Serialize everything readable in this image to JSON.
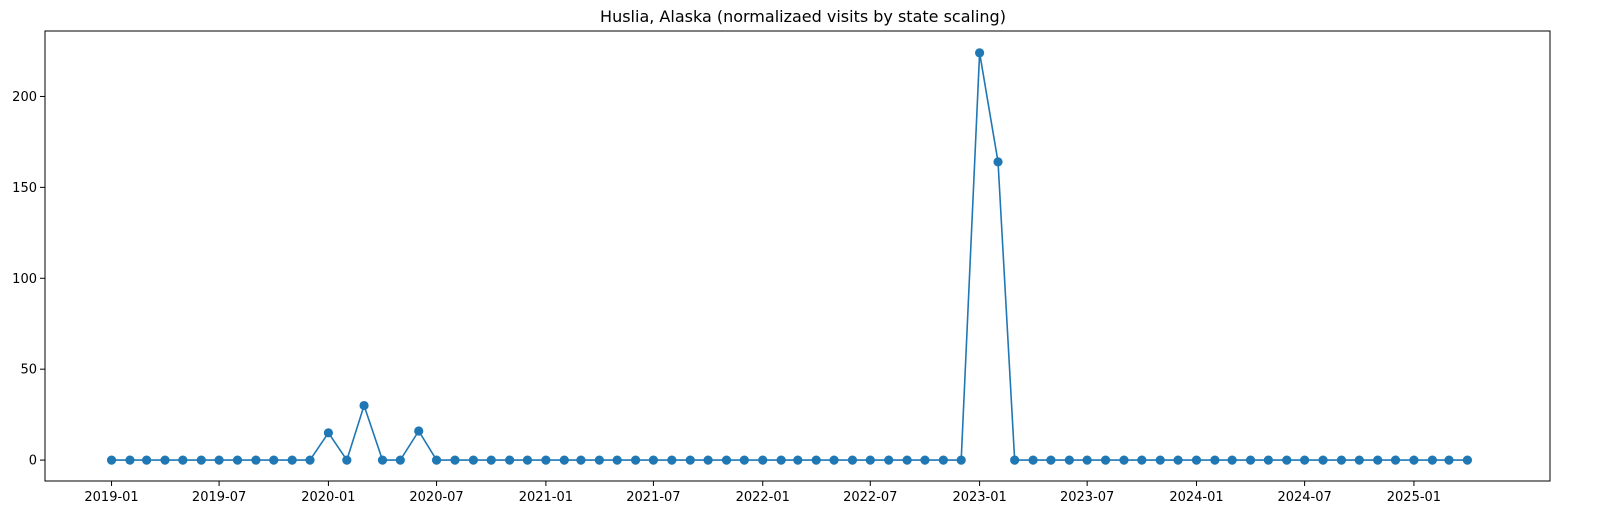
{
  "chart_data": {
    "type": "line",
    "title": "Huslia, Alaska (normalizaed visits by state scaling)",
    "xlabel": "",
    "ylabel": "",
    "ylim": [
      -11.5,
      236
    ],
    "xlim": [
      "2018-09-11",
      "2025-08-18"
    ],
    "grid": false,
    "color": "#1f77b4",
    "x_ticks": [
      "2019-01",
      "2019-07",
      "2020-01",
      "2020-07",
      "2021-01",
      "2021-07",
      "2022-01",
      "2022-07",
      "2023-01",
      "2023-07",
      "2024-01",
      "2024-07",
      "2025-01"
    ],
    "y_ticks": [
      0,
      50,
      100,
      150,
      200
    ],
    "x": [
      "2019-01",
      "2019-02",
      "2019-03",
      "2019-04",
      "2019-05",
      "2019-06",
      "2019-07",
      "2019-08",
      "2019-09",
      "2019-10",
      "2019-11",
      "2019-12",
      "2020-01",
      "2020-02",
      "2020-03",
      "2020-04",
      "2020-05",
      "2020-06",
      "2020-07",
      "2020-08",
      "2020-09",
      "2020-10",
      "2020-11",
      "2020-12",
      "2021-01",
      "2021-02",
      "2021-03",
      "2021-04",
      "2021-05",
      "2021-06",
      "2021-07",
      "2021-08",
      "2021-09",
      "2021-10",
      "2021-11",
      "2021-12",
      "2022-01",
      "2022-02",
      "2022-03",
      "2022-04",
      "2022-05",
      "2022-06",
      "2022-07",
      "2022-08",
      "2022-09",
      "2022-10",
      "2022-11",
      "2022-12",
      "2023-01",
      "2023-02",
      "2023-03",
      "2023-04",
      "2023-05",
      "2023-06",
      "2023-07",
      "2023-08",
      "2023-09",
      "2023-10",
      "2023-11",
      "2023-12",
      "2024-01",
      "2024-02",
      "2024-03",
      "2024-04",
      "2024-05",
      "2024-06",
      "2024-07",
      "2024-08",
      "2024-09",
      "2024-10",
      "2024-11",
      "2024-12",
      "2025-01",
      "2025-02",
      "2025-03",
      "2025-04"
    ],
    "y": [
      0,
      0,
      0,
      0,
      0,
      0,
      0,
      0,
      0,
      0,
      0,
      0,
      15,
      0,
      30,
      0,
      0,
      16,
      0,
      0,
      0,
      0,
      0,
      0,
      0,
      0,
      0,
      0,
      0,
      0,
      0,
      0,
      0,
      0,
      0,
      0,
      0,
      0,
      0,
      0,
      0,
      0,
      0,
      0,
      0,
      0,
      0,
      0,
      224,
      164,
      0,
      0,
      0,
      0,
      0,
      0,
      0,
      0,
      0,
      0,
      0,
      0,
      0,
      0,
      0,
      0,
      0,
      0,
      0,
      0,
      0,
      0,
      0,
      0,
      0,
      0
    ]
  }
}
